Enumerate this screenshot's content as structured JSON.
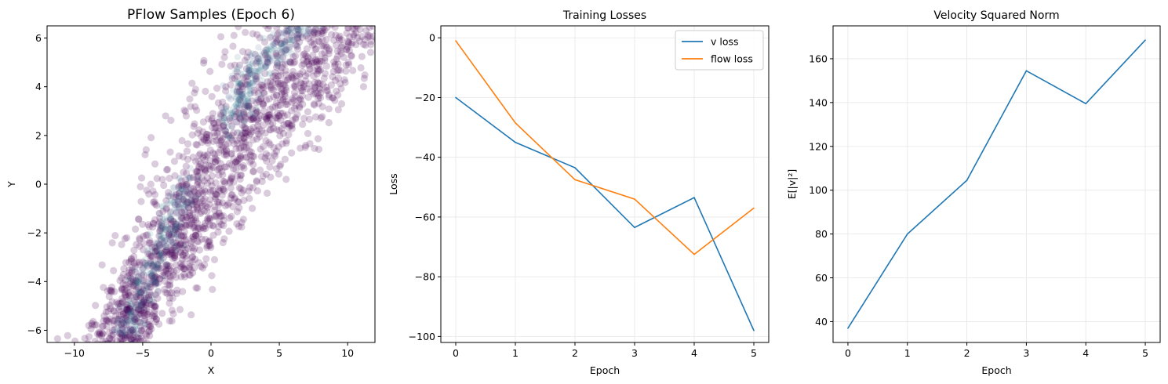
{
  "chart_data": [
    {
      "type": "scatter",
      "title": "PFlow Samples (Epoch 6)",
      "xlabel": "X",
      "ylabel": "Y",
      "xlim": [
        -12,
        12
      ],
      "ylim": [
        -6.5,
        6.5
      ],
      "xticks": [
        -10,
        -5,
        0,
        5,
        10
      ],
      "yticks": [
        -6,
        -4,
        -2,
        0,
        2,
        4,
        6
      ],
      "grid": false,
      "point_color": "#440154",
      "density_colormap": "viridis",
      "description_of_distribution": "dense diagonal band from about (-8,-6.5) to (10,6.5), wider at the top",
      "band_centerline": {
        "x": [
          -7.0,
          -2.5,
          2.5,
          8.5
        ],
        "y": [
          -6.5,
          -2.0,
          2.0,
          6.5
        ]
      },
      "band_dense_ridges": [
        {
          "x": [
            -6.5,
            -4.0,
            -2.0
          ],
          "y": [
            -6.3,
            -3.0,
            0.0
          ]
        },
        {
          "x": [
            1.5,
            2.5,
            4.5,
            7.0
          ],
          "y": [
            2.5,
            4.0,
            5.5,
            6.5
          ]
        }
      ]
    },
    {
      "type": "line",
      "title": "Training Losses",
      "xlabel": "Epoch",
      "ylabel": "Loss",
      "xlim": [
        -0.25,
        5.25
      ],
      "ylim": [
        -102,
        4
      ],
      "xticks": [
        0,
        1,
        2,
        3,
        4,
        5
      ],
      "yticks": [
        0,
        -20,
        -40,
        -60,
        -80,
        -100
      ],
      "grid": true,
      "legend_position": "upper right",
      "x": [
        0,
        1,
        2,
        3,
        4,
        5
      ],
      "series": [
        {
          "name": "v loss",
          "color": "#1f77b4",
          "values": [
            -20,
            -35,
            -43.5,
            -63.5,
            -53.5,
            -98
          ]
        },
        {
          "name": "flow loss",
          "color": "#ff7f0e",
          "values": [
            -1,
            -28.5,
            -47.5,
            -54,
            -72.5,
            -57
          ]
        }
      ]
    },
    {
      "type": "line",
      "title": "Velocity Squared Norm",
      "xlabel": "Epoch",
      "ylabel": "E[|v|²]",
      "xlim": [
        -0.25,
        5.25
      ],
      "ylim": [
        30.5,
        175
      ],
      "xticks": [
        0,
        1,
        2,
        3,
        4,
        5
      ],
      "yticks": [
        40,
        60,
        80,
        100,
        120,
        140,
        160
      ],
      "grid": true,
      "x": [
        0,
        1,
        2,
        3,
        4,
        5
      ],
      "series": [
        {
          "color": "#1f77b4",
          "values": [
            37,
            80,
            104.5,
            154.5,
            139.5,
            168.5
          ]
        }
      ]
    }
  ]
}
